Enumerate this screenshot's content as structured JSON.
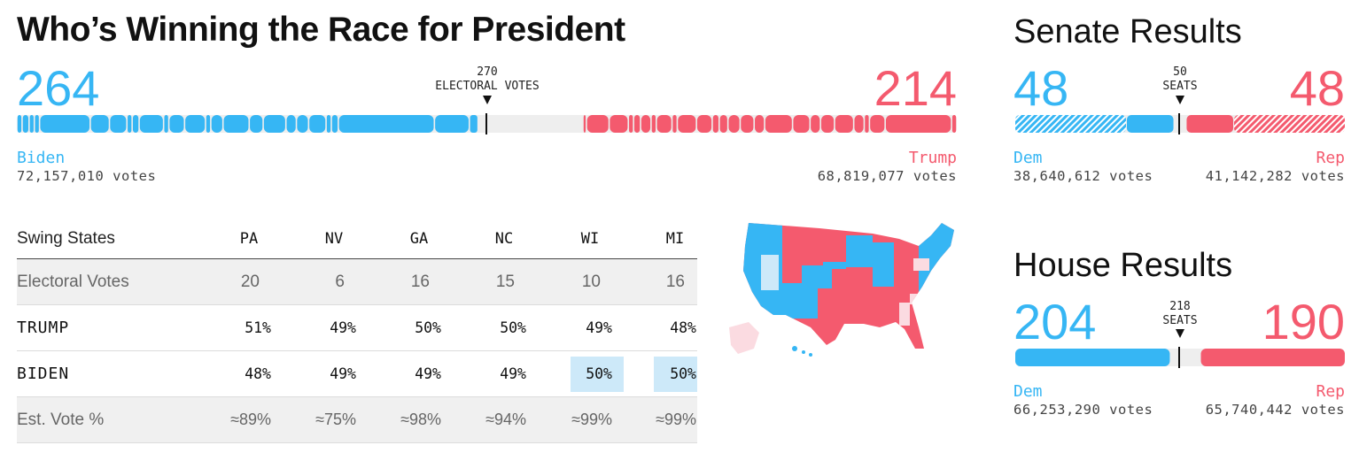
{
  "page": {
    "title": "Who’s Winning the Race for President"
  },
  "president": {
    "dem_count": "264",
    "rep_count": "214",
    "threshold_number": "270",
    "threshold_label": "ELECTORAL VOTES",
    "dem_name": "Biden",
    "rep_name": "Trump",
    "dem_votes": "72,157,010 votes",
    "rep_votes": "68,819,077 votes"
  },
  "senate": {
    "title": "Senate Results",
    "dem_count": "48",
    "rep_count": "48",
    "threshold_number": "50",
    "threshold_label": "SEATS",
    "dem_name": "Dem",
    "rep_name": "Rep",
    "dem_votes": "38,640,612 votes",
    "rep_votes": "41,142,282 votes"
  },
  "house": {
    "title": "House Results",
    "dem_count": "204",
    "rep_count": "190",
    "threshold_number": "218",
    "threshold_label": "SEATS",
    "dem_name": "Dem",
    "rep_name": "Rep",
    "dem_votes": "66,253,290 votes",
    "rep_votes": "65,740,442 votes"
  },
  "swing_table": {
    "header_label": "Swing States",
    "states": [
      "PA",
      "NV",
      "GA",
      "NC",
      "WI",
      "MI"
    ],
    "rows": [
      {
        "label": "Electoral Votes",
        "values": [
          "20",
          "6",
          "16",
          "15",
          "10",
          "16"
        ]
      },
      {
        "label": "TRUMP",
        "values": [
          "51%",
          "49%",
          "50%",
          "50%",
          "49%",
          "48%"
        ]
      },
      {
        "label": "BIDEN",
        "values": [
          "48%",
          "49%",
          "49%",
          "49%",
          "50%",
          "50%"
        ]
      },
      {
        "label": "Est. Vote %",
        "values": [
          "≈89%",
          "≈75%",
          "≈98%",
          "≈94%",
          "≈99%",
          "≈99%"
        ]
      }
    ],
    "highlighted": [
      {
        "row": 2,
        "col": 4
      },
      {
        "row": 2,
        "col": 5
      }
    ]
  },
  "colors": {
    "dem": "#36b6f4",
    "rep": "#f45a6e",
    "dem_lean": "#cde9f9",
    "rep_lean": "#fbdbe1",
    "track": "#eeeeee"
  },
  "chart_data": [
    {
      "type": "bar",
      "title": "Who’s Winning the Race for President",
      "categories": [
        "Biden",
        "Trump"
      ],
      "values": [
        264,
        214
      ],
      "total": 538,
      "threshold": 270
    },
    {
      "type": "bar",
      "title": "Senate Results",
      "categories": [
        "Dem",
        "Rep"
      ],
      "values": [
        48,
        48
      ],
      "total": 100,
      "threshold": 50
    },
    {
      "type": "bar",
      "title": "House Results",
      "categories": [
        "Dem",
        "Rep"
      ],
      "values": [
        204,
        190
      ],
      "total": 435,
      "threshold": 218
    },
    {
      "type": "table",
      "title": "Swing States",
      "columns": [
        "PA",
        "NV",
        "GA",
        "NC",
        "WI",
        "MI"
      ],
      "rows": [
        {
          "name": "Electoral Votes",
          "values": [
            20,
            6,
            16,
            15,
            10,
            16
          ]
        },
        {
          "name": "TRUMP",
          "values": [
            51,
            49,
            50,
            50,
            49,
            48
          ]
        },
        {
          "name": "BIDEN",
          "values": [
            48,
            49,
            49,
            49,
            50,
            50
          ]
        },
        {
          "name": "Est. Vote %",
          "values": [
            89,
            75,
            98,
            94,
            99,
            99
          ]
        }
      ]
    }
  ]
}
